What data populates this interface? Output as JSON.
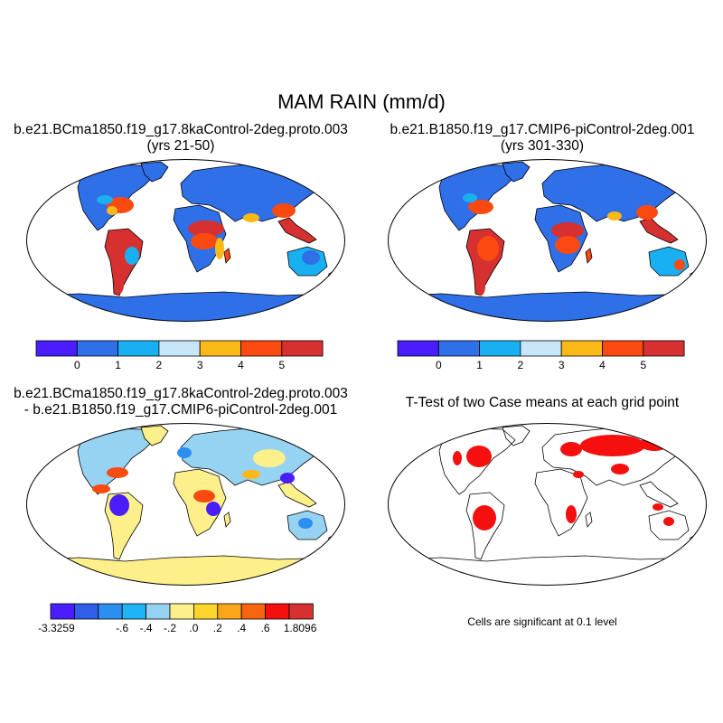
{
  "title": "MAM RAIN (mm/d)",
  "panels": [
    {
      "id": "case1",
      "title_line1": "b.e21.BCma1850.f19_g17.8kaControl-2deg.proto.003",
      "title_line2": "(yrs 21-50)"
    },
    {
      "id": "case2",
      "title_line1": "b.e21.B1850.f19_g17.CMIP6-piControl-2deg.001",
      "title_line2": "(yrs 301-330)"
    },
    {
      "id": "difference",
      "title_line1": "b.e21.BCma1850.f19_g17.8kaControl-2deg.proto.003",
      "title_line2": "- b.e21.B1850.f19_g17.CMIP6-piControl-2deg.001"
    },
    {
      "id": "ttest",
      "title_line1": "T-Test of two Case means at each grid point",
      "note": "Cells are significant at 0.1 level"
    }
  ],
  "colorbars": {
    "mean": {
      "colors": [
        "#4a1efa",
        "#2f6fe8",
        "#19b0f2",
        "#c8e6f8",
        "#fbb918",
        "#fb4a0f",
        "#d63030"
      ],
      "labels": [
        "0",
        "1",
        "2",
        "3",
        "4",
        "5"
      ]
    },
    "difference": {
      "colors": [
        "#4a1efa",
        "#2f5ee8",
        "#2b8ff0",
        "#1fb4f5",
        "#96d2f1",
        "#fdf08a",
        "#fbd52a",
        "#fba51a",
        "#f9650f",
        "#f50f0f",
        "#d63030"
      ],
      "labels": [
        "-3.3259",
        "-.6",
        "-.4",
        "-.2",
        ".0",
        ".2",
        ".4",
        ".6",
        "1.8096"
      ]
    }
  },
  "colors": {
    "land_dry": "#2f6fe8",
    "antarctica": "#2f6fe8",
    "wet": "#d63030",
    "moist": "#fb4a0f",
    "moderate": "#fbb918",
    "low": "#c8e6f8",
    "light": "#19b0f2",
    "significant": "#f50f0f",
    "diff_positive": "#fdf08a",
    "diff_light_neg": "#96d2f1",
    "diff_neg": "#2b8ff0",
    "diff_strong_neg": "#4a1efa"
  }
}
